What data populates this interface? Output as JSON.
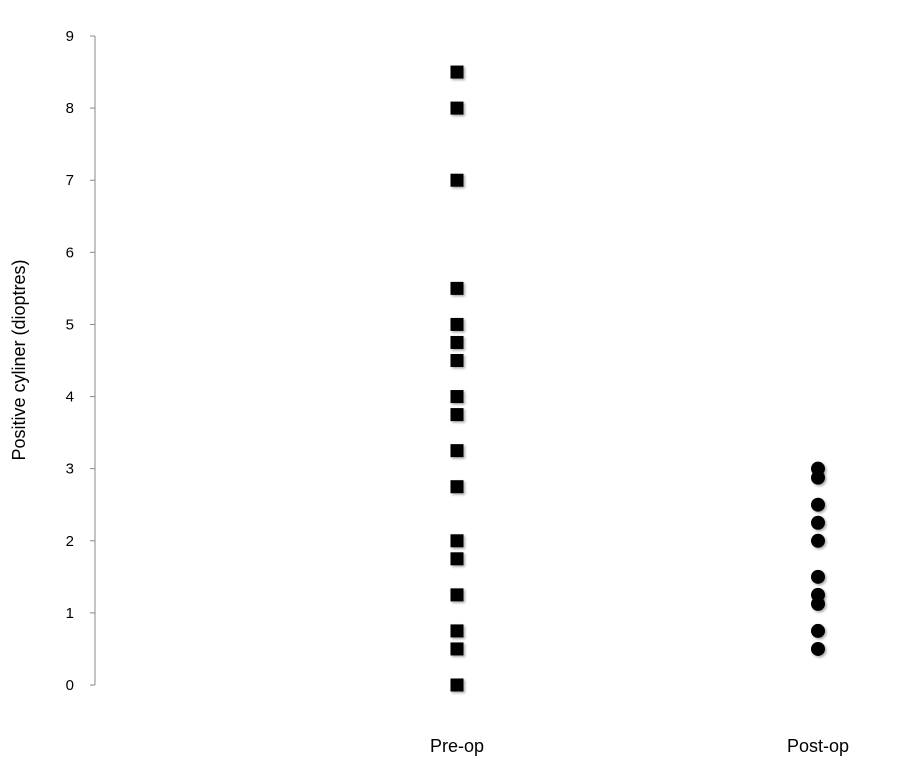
{
  "chart_data": {
    "type": "scatter",
    "title": "",
    "xlabel": "",
    "ylabel": "Positive cyliner (dioptres)",
    "categories": [
      "Pre-op",
      "Post-op"
    ],
    "ylim": [
      0,
      9
    ],
    "yticks": [
      "0",
      "1",
      "2",
      "3",
      "4",
      "5",
      "6",
      "7",
      "8",
      "9"
    ],
    "grid": false,
    "legend": "none",
    "series": [
      {
        "category": "Pre-op",
        "marker": "square",
        "color": "#000000",
        "values": [
          8.5,
          8,
          7,
          5.5,
          5,
          4.75,
          4.5,
          4,
          3.75,
          3.25,
          2.75,
          2,
          1.75,
          1.25,
          0.75,
          0.5,
          0
        ]
      },
      {
        "category": "Post-op",
        "marker": "circle",
        "color": "#000000",
        "values": [
          3,
          2.875,
          2.5,
          2.25,
          2,
          1.5,
          1.25,
          1.125,
          0.75,
          0.5
        ]
      }
    ]
  }
}
